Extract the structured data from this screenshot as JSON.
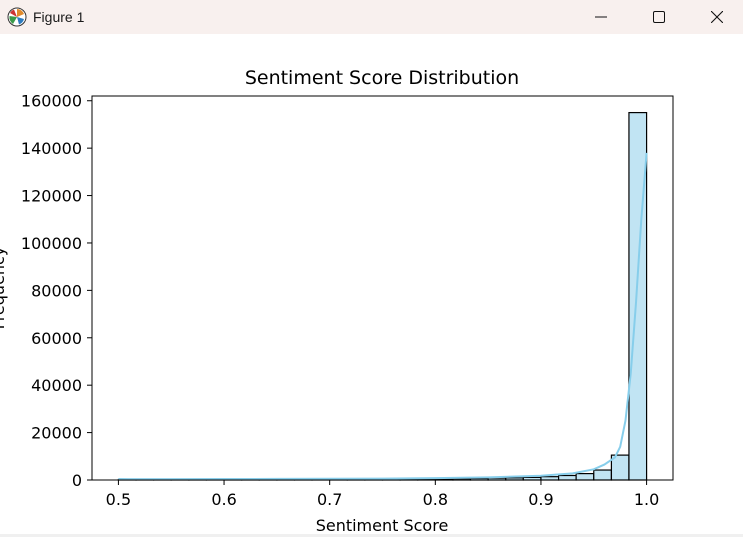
{
  "window": {
    "title": "Figure 1",
    "icons": {
      "app": "matplotlib-logo-icon",
      "minimize": "minimize-icon",
      "maximize": "maximize-icon",
      "close": "close-icon"
    }
  },
  "chart_data": {
    "type": "bar",
    "subtype": "histogram-with-kde",
    "title": "Sentiment Score Distribution",
    "xlabel": "Sentiment Score",
    "ylabel": "Frequency",
    "xlim": [
      0.475,
      1.025
    ],
    "ylim": [
      0,
      162000
    ],
    "xticks": [
      0.5,
      0.6,
      0.7,
      0.8,
      0.9,
      1.0
    ],
    "xtick_labels": [
      "0.5",
      "0.6",
      "0.7",
      "0.8",
      "0.9",
      "1.0"
    ],
    "yticks": [
      0,
      20000,
      40000,
      60000,
      80000,
      100000,
      120000,
      140000,
      160000
    ],
    "ytick_labels": [
      "0",
      "20000",
      "40000",
      "60000",
      "80000",
      "100000",
      "120000",
      "140000",
      "160000"
    ],
    "bin_edges": [
      0.5,
      0.5167,
      0.5333,
      0.55,
      0.5667,
      0.5833,
      0.6,
      0.6167,
      0.6333,
      0.65,
      0.6667,
      0.6833,
      0.7,
      0.7167,
      0.7333,
      0.75,
      0.7667,
      0.7833,
      0.8,
      0.8167,
      0.8333,
      0.85,
      0.8667,
      0.8833,
      0.9,
      0.9167,
      0.9333,
      0.95,
      0.9667,
      0.9833,
      1.0
    ],
    "counts": [
      200,
      150,
      150,
      150,
      200,
      200,
      200,
      200,
      250,
      250,
      250,
      300,
      300,
      300,
      350,
      400,
      400,
      450,
      500,
      550,
      650,
      800,
      900,
      1100,
      1400,
      1900,
      2700,
      4200,
      10500,
      155000
    ],
    "kde": {
      "x": [
        0.5,
        0.55,
        0.6,
        0.65,
        0.7,
        0.75,
        0.8,
        0.85,
        0.9,
        0.93,
        0.95,
        0.96,
        0.97,
        0.975,
        0.98,
        0.985,
        0.99,
        0.995,
        1.0
      ],
      "y": [
        400,
        350,
        400,
        450,
        500,
        600,
        800,
        1100,
        1800,
        2800,
        4500,
        6500,
        9500,
        14000,
        25000,
        45000,
        75000,
        110000,
        138000
      ]
    },
    "colors": {
      "bar_fill": "#c1e4f3",
      "bar_edge": "#000000",
      "kde_line": "#87ceeb"
    },
    "grid": false,
    "legend": "none"
  }
}
